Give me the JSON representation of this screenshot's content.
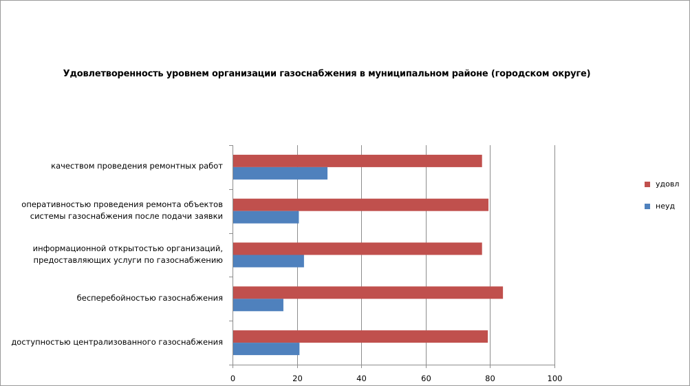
{
  "chart_data": {
    "type": "bar",
    "orientation": "horizontal",
    "title": "Удовлетворенность уровнем организации газоснабжения в муниципальном районе (городском округе)",
    "categories": [
      [
        "качеством  проведения  ремонтных работ"
      ],
      [
        "оперативностью проведения ремонта объектов",
        "системы газоснабжения после подачи заявки"
      ],
      [
        "информационной открытостью организаций,",
        "предоставляющих услуги по газоснабжению"
      ],
      [
        "бесперебойностью  газоснабжения"
      ],
      [
        "доступностью централизованного газоснабжения"
      ]
    ],
    "series": [
      {
        "name": "удовл",
        "color": "#c0504d",
        "values": [
          77.5,
          79.5,
          77.5,
          84,
          79.3
        ]
      },
      {
        "name": "неуд",
        "color": "#4f81bd",
        "values": [
          29.5,
          20.6,
          22.2,
          15.8,
          20.8
        ]
      }
    ],
    "xlim": [
      0,
      100
    ],
    "xticks": [
      "0",
      "20",
      "40",
      "60",
      "80",
      "100"
    ],
    "grid": true,
    "legend_position": "right"
  }
}
